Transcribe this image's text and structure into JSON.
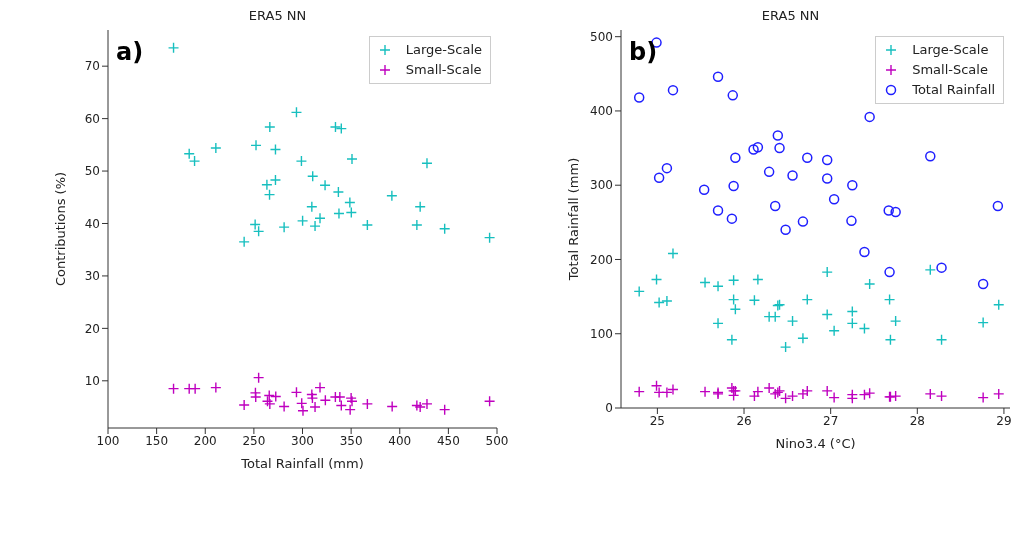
{
  "chart_data": [
    {
      "type": "scatter",
      "title": "ERA5 NN",
      "xlabel": "Total Rainfall (mm)",
      "ylabel": "Contributions (%)",
      "annotations": [
        "a)"
      ],
      "xlim": [
        100,
        500
      ],
      "xticks": [
        100,
        150,
        200,
        250,
        300,
        350,
        400,
        450,
        500
      ],
      "ylim": [
        1.0,
        76.9
      ],
      "yticks": [
        10,
        20,
        30,
        40,
        50,
        60,
        70
      ],
      "grid": false,
      "legend": "top right",
      "series": [
        {
          "name": "Large-Scale",
          "color": "#17bfbf",
          "marker": "cross",
          "x": [
            167.4,
            293.8,
            266.4,
            333.9,
            339.9,
            183.5,
            189,
            210.9,
            252.2,
            272.2,
            298.9,
            350.9,
            428,
            310.5,
            272.2,
            263.4,
            266.1,
            323.2,
            336.9,
            348.7,
            391.9,
            421,
            309.6,
            337.5,
            350.2,
            318,
            300.1,
            312.9,
            281.1,
            251.3,
            254.9,
            240,
            366.7,
            417.6,
            446.2,
            492.4
          ],
          "values": [
            73.5,
            61.2,
            58.4,
            58.4,
            58.1,
            53.3,
            51.9,
            54.4,
            54.9,
            54.1,
            51.9,
            52.3,
            51.5,
            49,
            48.3,
            47.4,
            45.5,
            47.3,
            46,
            44,
            45.3,
            43.2,
            43.2,
            41.9,
            42.1,
            41,
            40.5,
            39.5,
            39.3,
            39.8,
            38.5,
            36.5,
            39.7,
            39.7,
            39,
            37.3
          ]
        },
        {
          "name": "Small-Scale",
          "color": "#bf00bf",
          "marker": "cross",
          "x": [
            167.4,
            183.5,
            189.6,
            210.9,
            254.9,
            251.6,
            251.9,
            265.8,
            264,
            266.4,
            272.5,
            240,
            281.1,
            293.8,
            299.2,
            300.5,
            309.6,
            310.2,
            318,
            312.9,
            323.5,
            333.8,
            338.4,
            339.9,
            349,
            350,
            350.9,
            366.7,
            392.2,
            417.6,
            421,
            428,
            446.2,
            492.4
          ],
          "values": [
            8.5,
            8.5,
            8.5,
            8.7,
            10.6,
            7.7,
            6.9,
            7.2,
            6.1,
            5.6,
            7.0,
            5.4,
            5.1,
            7.8,
            5.7,
            4.3,
            7.4,
            6.7,
            8.7,
            5.0,
            6.3,
            6.9,
            6.9,
            5.3,
            4.5,
            6.7,
            6.1,
            5.6,
            5.1,
            5.3,
            5.0,
            5.6,
            4.5,
            6.1
          ]
        }
      ]
    },
    {
      "type": "scatter",
      "title": "ERA5 NN",
      "xlabel": "Nino3.4 (°C)",
      "ylabel": "Total Rainfall (mm)",
      "annotations": [
        "b)"
      ],
      "xlim": [
        24.58,
        29.07
      ],
      "xticks": [
        25,
        26,
        27,
        28,
        29
      ],
      "ylim": [
        0,
        509
      ],
      "yticks": [
        0,
        100,
        200,
        300,
        400,
        500
      ],
      "grid": false,
      "legend": "top right",
      "series": [
        {
          "name": "Large-Scale",
          "color": "#17bfbf",
          "marker": "cross",
          "x": [
            24.79,
            24.99,
            25.02,
            25.11,
            25.18,
            25.55,
            25.7,
            25.88,
            25.88,
            25.9,
            25.7,
            25.86,
            26.12,
            26.16,
            26.29,
            26.36,
            26.39,
            26.41,
            26.56,
            26.48,
            26.68,
            26.73,
            26.96,
            26.96,
            27.04,
            27.25,
            27.25,
            27.39,
            27.45,
            27.68,
            27.75,
            27.69,
            28.15,
            28.28,
            28.76,
            28.94
          ],
          "values": [
            157,
            173,
            142,
            144,
            208,
            169,
            164,
            172,
            146,
            133,
            114,
            92,
            145,
            173,
            123,
            123,
            138,
            139,
            117,
            82,
            94,
            146,
            183,
            126,
            104,
            130,
            114,
            107,
            167,
            146,
            117,
            92,
            186,
            92,
            115,
            139
          ]
        },
        {
          "name": "Small-Scale",
          "color": "#bf00bf",
          "marker": "cross",
          "x": [
            24.79,
            24.99,
            25.02,
            25.11,
            25.18,
            25.55,
            25.7,
            25.7,
            25.86,
            25.88,
            25.9,
            25.88,
            26.12,
            26.16,
            26.29,
            26.36,
            26.39,
            26.41,
            26.48,
            26.56,
            26.68,
            26.73,
            26.96,
            27.04,
            27.25,
            27.25,
            27.39,
            27.45,
            27.68,
            27.69,
            27.75,
            28.15,
            28.28,
            28.76,
            28.94
          ],
          "values": [
            22,
            30,
            21,
            21,
            25,
            22,
            21,
            19,
            27,
            23,
            23,
            17,
            16,
            22,
            27,
            19,
            21,
            23,
            13,
            16,
            19,
            23,
            23,
            14,
            18,
            13,
            18,
            20,
            15,
            15,
            16,
            19,
            16,
            14,
            19
          ]
        },
        {
          "name": "Total Rainfall",
          "color": "#1f1fff",
          "marker": "circle",
          "x": [
            24.99,
            24.79,
            25.18,
            25.7,
            25.87,
            27.45,
            26.39,
            26.11,
            26.16,
            26.41,
            25.9,
            26.73,
            26.96,
            28.15,
            25.11,
            25.02,
            26.29,
            26.56,
            26.96,
            25.54,
            25.88,
            27.25,
            27.04,
            26.36,
            28.93,
            25.7,
            27.67,
            27.75,
            25.86,
            26.68,
            27.24,
            26.48,
            27.39,
            27.68,
            28.28,
            28.76
          ],
          "values": [
            492,
            418,
            428,
            446,
            421,
            392,
            367,
            348,
            351,
            350,
            337,
            337,
            334,
            339,
            323,
            310,
            318,
            313,
            309,
            294,
            299,
            300,
            281,
            272,
            272,
            266,
            266,
            264,
            255,
            251,
            252,
            240,
            210,
            183,
            189,
            167
          ]
        }
      ]
    }
  ]
}
